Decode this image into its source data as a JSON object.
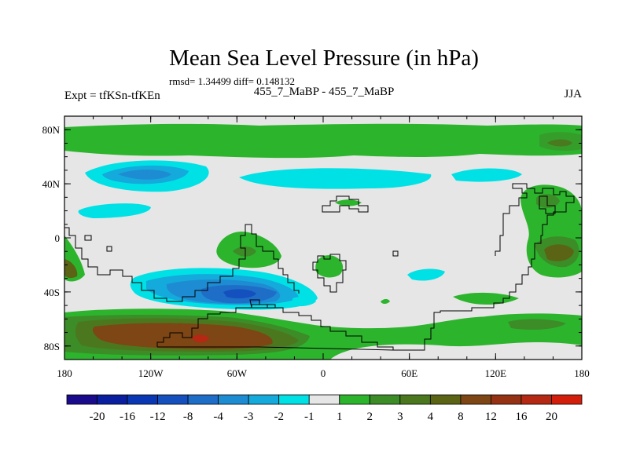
{
  "chart_data": {
    "type": "heatmap",
    "title": "Mean Sea Level Pressure (in hPa)",
    "stats": "rmsd= 1.34499 diff= 0.148132",
    "left_label": "Expt = tfKSn-tfKEn",
    "center_label": "455_7_MaBP - 455_7_MaBP",
    "right_label": "JJA",
    "x_ticks": [
      "180",
      "120W",
      "60W",
      "0",
      "60E",
      "120E",
      "180"
    ],
    "x_values": [
      -180,
      -120,
      -60,
      0,
      60,
      120,
      180
    ],
    "y_ticks": [
      "80N",
      "40N",
      "0",
      "40S",
      "80S"
    ],
    "y_values": [
      80,
      40,
      0,
      -40,
      -80
    ],
    "xlim": [
      -180,
      180
    ],
    "ylim": [
      -90,
      90
    ],
    "colorbar": {
      "colors": [
        "#1a0a8c",
        "#0a1ea0",
        "#0a37b4",
        "#1450be",
        "#1e6ec8",
        "#1e8cd2",
        "#14aadc",
        "#00e1e6",
        "#e6e6e6",
        "#2db42d",
        "#3c8c28",
        "#4b781e",
        "#5a6414",
        "#7d4614",
        "#963214",
        "#b42814",
        "#d21e0a"
      ],
      "labels": [
        "-20",
        "-16",
        "-12",
        "-8",
        "-4",
        "-3",
        "-2",
        "-1",
        "1",
        "2",
        "3",
        "4",
        "8",
        "12",
        "16",
        "20"
      ]
    }
  }
}
